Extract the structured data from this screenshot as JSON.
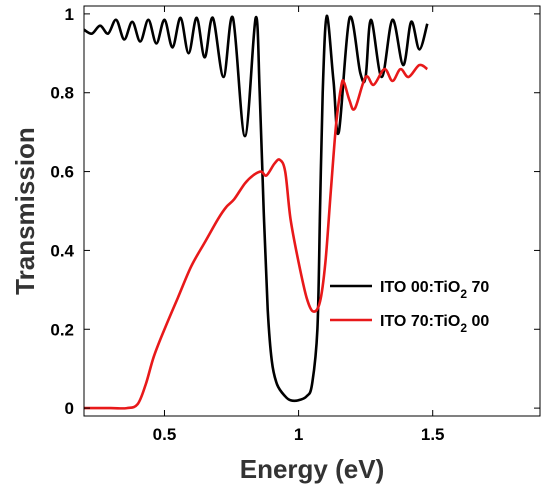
{
  "chart_data": {
    "type": "line",
    "title": "",
    "xlabel": "Energy (eV)",
    "ylabel": "Transmission",
    "xlim": [
      0.2,
      1.9
    ],
    "ylim": [
      -0.02,
      1.02
    ],
    "xticks": [
      0.5,
      1,
      1.5
    ],
    "xtick_labels": [
      "0.5",
      "1",
      "1.5"
    ],
    "yticks": [
      0,
      0.2,
      0.4,
      0.6,
      0.8,
      1
    ],
    "ytick_labels": [
      "0",
      "0.2",
      "0.4",
      "0.6",
      "0.8",
      "1"
    ],
    "grid": false,
    "legend_position": "right",
    "series": [
      {
        "name": "ITO 00:TiO2 70",
        "name_parts": [
          "ITO 00:TiO",
          "2",
          " 70"
        ],
        "color": "#000000",
        "points": [
          [
            0.2,
            0.96
          ],
          [
            0.23,
            0.95
          ],
          [
            0.26,
            0.97
          ],
          [
            0.29,
            0.95
          ],
          [
            0.32,
            0.985
          ],
          [
            0.35,
            0.935
          ],
          [
            0.38,
            0.98
          ],
          [
            0.41,
            0.93
          ],
          [
            0.44,
            0.985
          ],
          [
            0.47,
            0.925
          ],
          [
            0.5,
            0.985
          ],
          [
            0.53,
            0.915
          ],
          [
            0.56,
            0.99
          ],
          [
            0.59,
            0.9
          ],
          [
            0.62,
            0.99
          ],
          [
            0.65,
            0.89
          ],
          [
            0.68,
            0.99
          ],
          [
            0.72,
            0.84
          ],
          [
            0.755,
            0.99
          ],
          [
            0.8,
            0.69
          ],
          [
            0.84,
            0.99
          ],
          [
            0.855,
            0.8
          ],
          [
            0.87,
            0.5
          ],
          [
            0.885,
            0.25
          ],
          [
            0.9,
            0.12
          ],
          [
            0.92,
            0.06
          ],
          [
            0.95,
            0.03
          ],
          [
            0.97,
            0.02
          ],
          [
            1.0,
            0.02
          ],
          [
            1.03,
            0.03
          ],
          [
            1.05,
            0.06
          ],
          [
            1.07,
            0.2
          ],
          [
            1.08,
            0.5
          ],
          [
            1.09,
            0.8
          ],
          [
            1.105,
            0.995
          ],
          [
            1.13,
            0.83
          ],
          [
            1.15,
            0.7
          ],
          [
            1.19,
            0.99
          ],
          [
            1.23,
            0.85
          ],
          [
            1.25,
            0.84
          ],
          [
            1.27,
            0.985
          ],
          [
            1.31,
            0.84
          ],
          [
            1.35,
            0.985
          ],
          [
            1.39,
            0.87
          ],
          [
            1.42,
            0.98
          ],
          [
            1.45,
            0.91
          ],
          [
            1.48,
            0.975
          ]
        ]
      },
      {
        "name": "ITO 70:TiO2 00",
        "name_parts": [
          "ITO 70:TiO",
          "2",
          " 00"
        ],
        "color": "#e8191a",
        "points": [
          [
            0.2,
            0.0
          ],
          [
            0.3,
            0.0
          ],
          [
            0.36,
            0.0
          ],
          [
            0.4,
            0.01
          ],
          [
            0.43,
            0.06
          ],
          [
            0.46,
            0.13
          ],
          [
            0.5,
            0.2
          ],
          [
            0.55,
            0.28
          ],
          [
            0.6,
            0.36
          ],
          [
            0.65,
            0.42
          ],
          [
            0.7,
            0.48
          ],
          [
            0.73,
            0.51
          ],
          [
            0.76,
            0.53
          ],
          [
            0.8,
            0.57
          ],
          [
            0.83,
            0.59
          ],
          [
            0.86,
            0.6
          ],
          [
            0.88,
            0.59
          ],
          [
            0.91,
            0.62
          ],
          [
            0.93,
            0.63
          ],
          [
            0.95,
            0.6
          ],
          [
            0.97,
            0.48
          ],
          [
            1.0,
            0.37
          ],
          [
            1.03,
            0.28
          ],
          [
            1.055,
            0.245
          ],
          [
            1.08,
            0.27
          ],
          [
            1.1,
            0.37
          ],
          [
            1.12,
            0.55
          ],
          [
            1.14,
            0.72
          ],
          [
            1.16,
            0.82
          ],
          [
            1.17,
            0.825
          ],
          [
            1.19,
            0.78
          ],
          [
            1.21,
            0.76
          ],
          [
            1.25,
            0.84
          ],
          [
            1.28,
            0.82
          ],
          [
            1.32,
            0.86
          ],
          [
            1.35,
            0.83
          ],
          [
            1.38,
            0.86
          ],
          [
            1.41,
            0.84
          ],
          [
            1.45,
            0.87
          ],
          [
            1.48,
            0.86
          ]
        ]
      }
    ]
  }
}
